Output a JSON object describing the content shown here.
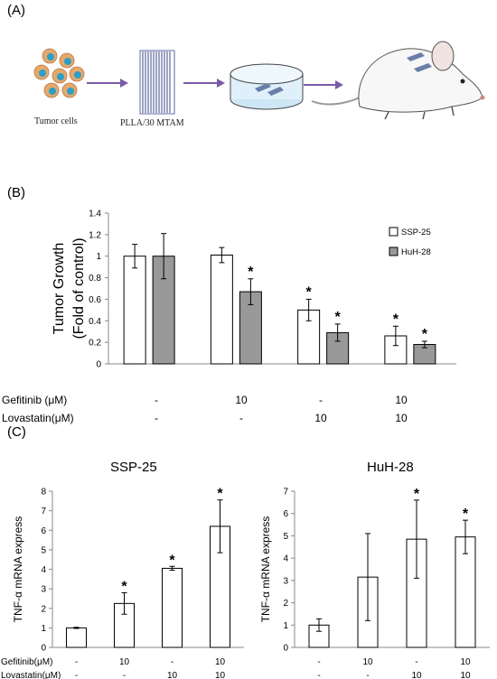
{
  "panels": {
    "a_label": "(A)",
    "b_label": "(B)",
    "c_label": "(C)"
  },
  "schematic": {
    "tumor_cells_label": "Tumor cells",
    "scaffold_label": "PLLA/30 MTAM",
    "arrow_color": "#7a5aa6",
    "cell_color": "#e6a86a",
    "nucleus_color": "#2aa0c8"
  },
  "colors": {
    "ssp25_fill": "#ffffff",
    "huh28_fill": "#999999",
    "stroke": "#000000",
    "axis_gray": "#888888"
  },
  "chart_data": [
    {
      "type": "bar",
      "ylabel_line1": "Tumor Growth",
      "ylabel_line2": "(Fold of control)",
      "ylim": [
        0,
        1.4
      ],
      "yticks": [
        "0",
        "0.2",
        "0.4",
        "0.6",
        "0.8",
        "1",
        "1.2",
        "1.4"
      ],
      "ytick_values": [
        0,
        0.2,
        0.4,
        0.6,
        0.8,
        1.0,
        1.2,
        1.4
      ],
      "legend_position": "top-right",
      "series": [
        {
          "name": "SSP-25",
          "values": [
            1.0,
            1.01,
            0.5,
            0.26
          ],
          "errors": [
            0.11,
            0.07,
            0.1,
            0.09
          ],
          "stars": [
            "",
            "",
            "*",
            "*"
          ]
        },
        {
          "name": "HuH-28",
          "values": [
            1.0,
            0.67,
            0.29,
            0.18
          ],
          "errors": [
            0.21,
            0.12,
            0.08,
            0.03
          ],
          "stars": [
            "",
            "*",
            "*",
            "*"
          ]
        }
      ],
      "conditions": {
        "gefitinib_label": "Gefitinib (μM)",
        "lovastatin_label": "Lovastatin(μM)",
        "gefitinib": [
          "-",
          "10",
          "-",
          "10"
        ],
        "lovastatin": [
          "-",
          "-",
          "10",
          "10"
        ]
      }
    },
    {
      "type": "bar",
      "title": "SSP-25",
      "ylabel": "TNF-α mRNA express",
      "ylim": [
        0,
        8
      ],
      "yticks": [
        "0",
        "1",
        "2",
        "3",
        "4",
        "5",
        "6",
        "7",
        "8"
      ],
      "ytick_values": [
        0,
        1,
        2,
        3,
        4,
        5,
        6,
        7,
        8
      ],
      "values": [
        1.0,
        2.25,
        4.05,
        6.2
      ],
      "errors": [
        0.03,
        0.55,
        0.1,
        1.35
      ],
      "stars": [
        "",
        "*",
        "*",
        "*"
      ],
      "conditions": {
        "gefitinib_label": "Gefitinib(μM)",
        "lovastatin_label": "Lovastatin(μM)",
        "gefitinib": [
          "-",
          "10",
          "-",
          "10"
        ],
        "lovastatin": [
          "-",
          "-",
          "10",
          "10"
        ]
      }
    },
    {
      "type": "bar",
      "title": "HuH-28",
      "ylabel": "TNF-α mRNA express",
      "ylim": [
        0,
        7
      ],
      "yticks": [
        "0",
        "1",
        "2",
        "3",
        "4",
        "5",
        "6",
        "7"
      ],
      "ytick_values": [
        0,
        1,
        2,
        3,
        4,
        5,
        6,
        7
      ],
      "values": [
        1.0,
        3.15,
        4.85,
        4.95
      ],
      "errors": [
        0.28,
        1.95,
        1.75,
        0.75
      ],
      "stars": [
        "",
        "",
        "*",
        "*"
      ],
      "conditions": {
        "gefitinib": [
          "-",
          "10",
          "-",
          "10"
        ],
        "lovastatin": [
          "-",
          "-",
          "10",
          "10"
        ]
      }
    }
  ]
}
